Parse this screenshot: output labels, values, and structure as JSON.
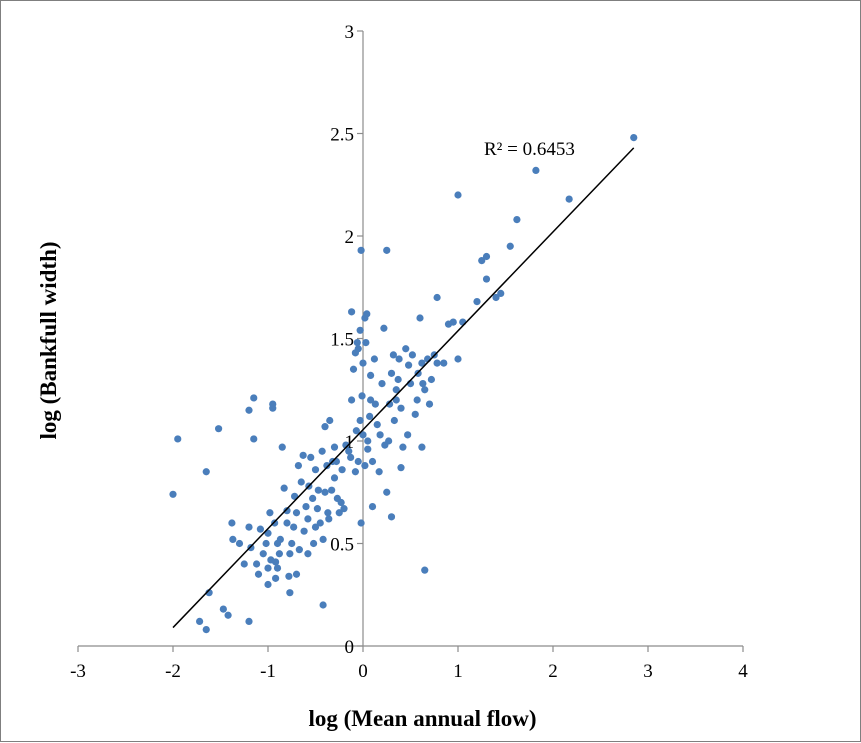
{
  "chart_data": {
    "type": "scatter",
    "title": "",
    "xlabel": "log (Mean annual flow)",
    "ylabel": "log (Bankfull width)",
    "xlim": [
      -3,
      4
    ],
    "ylim": [
      0,
      3
    ],
    "x_ticks": [
      "-3",
      "-2",
      "-1",
      "0",
      "1",
      "2",
      "3",
      "4"
    ],
    "y_ticks": [
      "0",
      "0.5",
      "1",
      "1.5",
      "2",
      "2.5",
      "3"
    ],
    "grid": false,
    "legend": "none",
    "point_color": "#4a7ebb",
    "trendline": {
      "x_start": -2.0,
      "y_start": 0.09,
      "x_end": 2.85,
      "y_end": 2.43,
      "label": "R² = 0.6453"
    },
    "points": [
      [
        -2.0,
        0.74
      ],
      [
        -1.95,
        1.01
      ],
      [
        -1.72,
        0.12
      ],
      [
        -1.65,
        0.08
      ],
      [
        -1.65,
        0.85
      ],
      [
        -1.62,
        0.26
      ],
      [
        -1.52,
        1.06
      ],
      [
        -1.47,
        0.18
      ],
      [
        -1.42,
        0.15
      ],
      [
        -1.38,
        0.6
      ],
      [
        -1.37,
        0.52
      ],
      [
        -1.3,
        0.5
      ],
      [
        -1.25,
        0.4
      ],
      [
        -1.2,
        0.12
      ],
      [
        -1.2,
        0.58
      ],
      [
        -1.2,
        1.15
      ],
      [
        -1.18,
        0.48
      ],
      [
        -1.15,
        1.21
      ],
      [
        -1.15,
        1.01
      ],
      [
        -1.12,
        0.4
      ],
      [
        -1.1,
        0.35
      ],
      [
        -1.08,
        0.57
      ],
      [
        -1.05,
        0.45
      ],
      [
        -1.02,
        0.5
      ],
      [
        -1.0,
        0.3
      ],
      [
        -1.0,
        0.38
      ],
      [
        -1.0,
        0.55
      ],
      [
        -0.98,
        0.65
      ],
      [
        -0.97,
        0.42
      ],
      [
        -0.95,
        1.18
      ],
      [
        -0.95,
        1.16
      ],
      [
        -0.93,
        0.6
      ],
      [
        -0.92,
        0.33
      ],
      [
        -0.92,
        0.41
      ],
      [
        -0.9,
        0.38
      ],
      [
        -0.9,
        0.5
      ],
      [
        -0.88,
        0.45
      ],
      [
        -0.87,
        0.52
      ],
      [
        -0.85,
        0.97
      ],
      [
        -0.83,
        0.77
      ],
      [
        -0.8,
        0.6
      ],
      [
        -0.8,
        0.66
      ],
      [
        -0.78,
        0.34
      ],
      [
        -0.77,
        0.26
      ],
      [
        -0.77,
        0.45
      ],
      [
        -0.75,
        0.5
      ],
      [
        -0.73,
        0.58
      ],
      [
        -0.72,
        0.73
      ],
      [
        -0.7,
        0.35
      ],
      [
        -0.7,
        0.65
      ],
      [
        -0.68,
        0.88
      ],
      [
        -0.67,
        0.47
      ],
      [
        -0.65,
        0.8
      ],
      [
        -0.63,
        0.93
      ],
      [
        -0.62,
        0.56
      ],
      [
        -0.6,
        0.68
      ],
      [
        -0.58,
        0.45
      ],
      [
        -0.58,
        0.62
      ],
      [
        -0.57,
        0.78
      ],
      [
        -0.55,
        0.92
      ],
      [
        -0.53,
        0.72
      ],
      [
        -0.52,
        0.5
      ],
      [
        -0.5,
        0.58
      ],
      [
        -0.5,
        0.86
      ],
      [
        -0.48,
        0.67
      ],
      [
        -0.47,
        0.76
      ],
      [
        -0.45,
        0.6
      ],
      [
        -0.43,
        0.95
      ],
      [
        -0.42,
        0.52
      ],
      [
        -0.42,
        0.2
      ],
      [
        -0.4,
        0.75
      ],
      [
        -0.4,
        1.07
      ],
      [
        -0.38,
        0.88
      ],
      [
        -0.37,
        0.65
      ],
      [
        -0.36,
        0.62
      ],
      [
        -0.35,
        1.1
      ],
      [
        -0.33,
        0.76
      ],
      [
        -0.32,
        0.9
      ],
      [
        -0.3,
        0.97
      ],
      [
        -0.3,
        0.82
      ],
      [
        -0.28,
        0.9
      ],
      [
        -0.27,
        0.72
      ],
      [
        -0.25,
        0.65
      ],
      [
        -0.23,
        0.7
      ],
      [
        -0.22,
        0.86
      ],
      [
        -0.2,
        0.67
      ],
      [
        -0.18,
        0.98
      ],
      [
        -0.15,
        0.95
      ],
      [
        -0.13,
        0.92
      ],
      [
        -0.12,
        1.2
      ],
      [
        -0.12,
        1.63
      ],
      [
        -0.1,
        1.35
      ],
      [
        -0.08,
        0.85
      ],
      [
        -0.08,
        1.43
      ],
      [
        -0.07,
        1.05
      ],
      [
        -0.06,
        1.48
      ],
      [
        -0.05,
        0.9
      ],
      [
        -0.05,
        1.45
      ],
      [
        -0.03,
        1.1
      ],
      [
        -0.03,
        1.54
      ],
      [
        -0.02,
        0.6
      ],
      [
        -0.02,
        1.93
      ],
      [
        -0.01,
        1.22
      ],
      [
        0.0,
        1.38
      ],
      [
        0.0,
        1.03
      ],
      [
        0.02,
        0.88
      ],
      [
        0.02,
        1.6
      ],
      [
        0.03,
        1.48
      ],
      [
        0.04,
        1.62
      ],
      [
        0.05,
        0.96
      ],
      [
        0.05,
        1.0
      ],
      [
        0.07,
        1.12
      ],
      [
        0.08,
        1.2
      ],
      [
        0.08,
        1.32
      ],
      [
        0.1,
        0.68
      ],
      [
        0.1,
        0.9
      ],
      [
        0.12,
        1.4
      ],
      [
        0.13,
        1.18
      ],
      [
        0.15,
        1.08
      ],
      [
        0.17,
        0.85
      ],
      [
        0.18,
        1.03
      ],
      [
        0.2,
        1.28
      ],
      [
        0.22,
        1.55
      ],
      [
        0.23,
        0.98
      ],
      [
        0.25,
        1.93
      ],
      [
        0.25,
        0.75
      ],
      [
        0.27,
        1.0
      ],
      [
        0.28,
        1.18
      ],
      [
        0.3,
        1.33
      ],
      [
        0.3,
        0.63
      ],
      [
        0.32,
        1.42
      ],
      [
        0.33,
        1.1
      ],
      [
        0.35,
        1.25
      ],
      [
        0.35,
        1.2
      ],
      [
        0.37,
        1.3
      ],
      [
        0.38,
        1.4
      ],
      [
        0.4,
        0.87
      ],
      [
        0.4,
        1.16
      ],
      [
        0.42,
        0.97
      ],
      [
        0.45,
        1.45
      ],
      [
        0.47,
        1.03
      ],
      [
        0.48,
        1.37
      ],
      [
        0.5,
        1.28
      ],
      [
        0.52,
        1.42
      ],
      [
        0.55,
        1.13
      ],
      [
        0.57,
        1.2
      ],
      [
        0.58,
        1.33
      ],
      [
        0.6,
        1.6
      ],
      [
        0.62,
        1.38
      ],
      [
        0.62,
        0.97
      ],
      [
        0.63,
        1.28
      ],
      [
        0.65,
        0.37
      ],
      [
        0.65,
        1.25
      ],
      [
        0.68,
        1.4
      ],
      [
        0.7,
        1.18
      ],
      [
        0.72,
        1.3
      ],
      [
        0.75,
        1.42
      ],
      [
        0.78,
        1.7
      ],
      [
        0.78,
        1.38
      ],
      [
        0.85,
        1.38
      ],
      [
        0.9,
        1.57
      ],
      [
        0.95,
        1.58
      ],
      [
        1.0,
        1.4
      ],
      [
        1.0,
        2.2
      ],
      [
        1.05,
        1.58
      ],
      [
        1.2,
        1.68
      ],
      [
        1.25,
        1.88
      ],
      [
        1.3,
        1.79
      ],
      [
        1.3,
        1.9
      ],
      [
        1.4,
        1.7
      ],
      [
        1.45,
        1.72
      ],
      [
        1.55,
        1.95
      ],
      [
        1.62,
        2.08
      ],
      [
        1.82,
        2.32
      ],
      [
        2.17,
        2.18
      ],
      [
        2.85,
        2.48
      ]
    ]
  }
}
